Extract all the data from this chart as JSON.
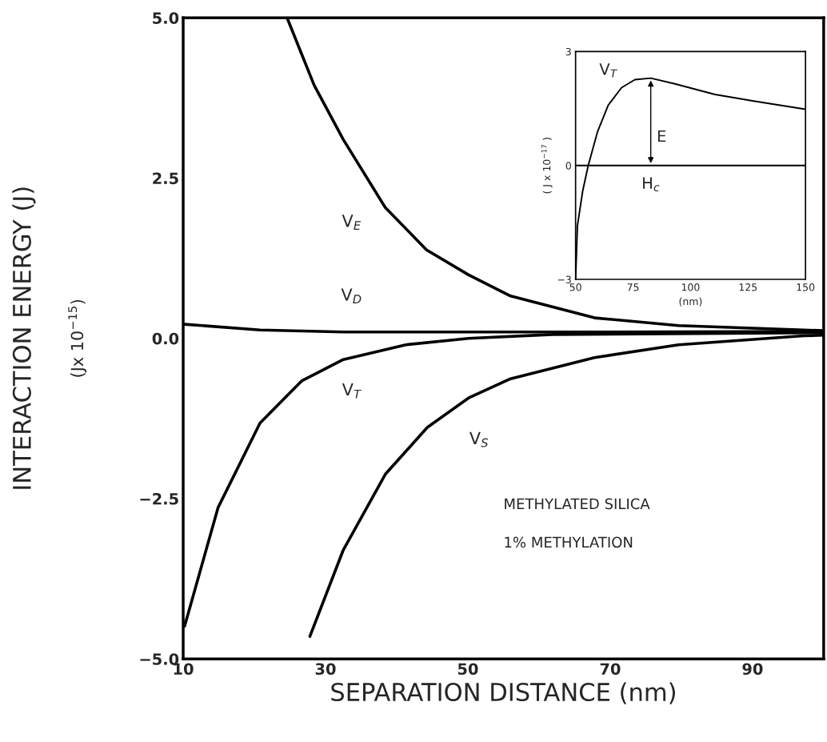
{
  "chart_data": [
    {
      "type": "line",
      "xlabel": "SEPARATION DISTANCE (nm)",
      "ylabel": "INTERACTION ENERGY (J)",
      "xlim": [
        10,
        100
      ],
      "ylim": [
        -5,
        5
      ],
      "xticks": [
        10,
        30,
        50,
        70,
        90
      ],
      "yticks": [
        {
          "value": 5,
          "label": "5.0"
        },
        {
          "value": 2.5,
          "label": "2.5"
        },
        {
          "value": 0,
          "label": "0.0"
        },
        {
          "value": -2.5,
          "label": "−2.5"
        },
        {
          "value": -5,
          "label": "−5.0"
        }
      ],
      "grid": false,
      "legend": false,
      "series": [
        {
          "name": "V$_{E}$",
          "color": "#000000",
          "x": [
            24.6,
            28.4,
            32.5,
            38.4,
            44.2,
            50.1,
            56.0,
            67.8,
            79.6,
            97.2,
            100
          ],
          "values": [
            5.0,
            3.95,
            3.1,
            2.04,
            1.38,
            0.99,
            0.66,
            0.32,
            0.2,
            0.13,
            0.12
          ]
        },
        {
          "name": "V$_{D}$",
          "color": "#000000",
          "x": [
            10.2,
            20.8,
            32.5,
            50.1,
            70,
            100
          ],
          "values": [
            0.22,
            0.13,
            0.1,
            0.1,
            0.1,
            0.11
          ]
        },
        {
          "name": "V$_{T}$",
          "color": "#000000",
          "x": [
            10.2,
            14.9,
            20.8,
            26.7,
            32.5,
            41.3,
            50.1,
            61.9,
            100
          ],
          "values": [
            -4.49,
            -2.64,
            -1.32,
            -0.66,
            -0.33,
            -0.1,
            0.0,
            0.06,
            0.09
          ]
        },
        {
          "name": "V$_{S}$",
          "color": "#000000",
          "x": [
            27.8,
            32.5,
            38.4,
            44.3,
            50.1,
            56.0,
            67.8,
            79.6,
            97.2,
            100
          ],
          "values": [
            -4.65,
            -3.3,
            -2.12,
            -1.39,
            -0.93,
            -0.63,
            -0.3,
            -0.1,
            0.04,
            0.05
          ]
        }
      ],
      "annotations": [
        "(Jx 10$^{−15}$)",
        "METHYLATED SILICA",
        "1% METHYLATION"
      ]
    },
    {
      "type": "line",
      "xlabel": "(nm)",
      "ylabel": "( J x 10$^{−17}$ )",
      "xlim": [
        50,
        150
      ],
      "ylim": [
        -3,
        3
      ],
      "xticks": [
        50,
        75,
        100,
        125,
        150
      ],
      "yticks": [
        {
          "value": -3,
          "label": "−3"
        },
        0,
        3
      ],
      "grid": false,
      "legend": false,
      "series": [
        {
          "name": "V$_{T}$",
          "color": "#000000",
          "x": [
            50,
            50.8,
            53.1,
            55.5,
            59.5,
            64.2,
            70.0,
            75.8,
            82.7,
            93.2,
            110.6,
            128.0,
            150
          ],
          "values": [
            -3.0,
            -1.59,
            -0.67,
            0.0,
            0.88,
            1.59,
            2.05,
            2.26,
            2.3,
            2.15,
            1.87,
            1.69,
            1.48
          ]
        }
      ],
      "ref_lines": [
        {
          "axis": "y",
          "value": 0,
          "color": "#000000"
        }
      ],
      "annotations": [
        "E",
        "H$_{c}$"
      ]
    }
  ]
}
